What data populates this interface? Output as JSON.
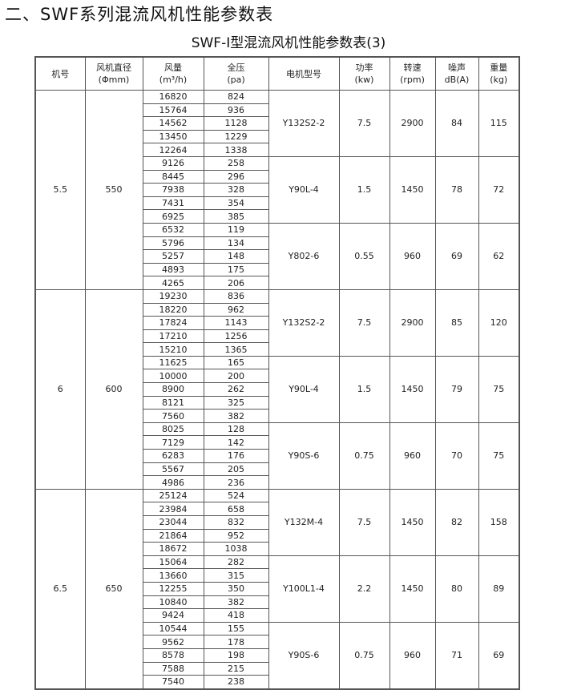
{
  "heading": "二、SWF系列混流风机性能参数表",
  "subtitle": "SWF-I型混流风机性能参数表(3)",
  "columns": [
    {
      "label": "机号",
      "unit": ""
    },
    {
      "label": "风机直径",
      "unit": "(Φmm)"
    },
    {
      "label": "风量",
      "unit": "(m³/h)"
    },
    {
      "label": "全压",
      "unit": "(pa)"
    },
    {
      "label": "电机型号",
      "unit": ""
    },
    {
      "label": "功率",
      "unit": "(kw)"
    },
    {
      "label": "转速",
      "unit": "(rpm)"
    },
    {
      "label": "噪声",
      "unit": "dB(A)"
    },
    {
      "label": "重量",
      "unit": "(kg)"
    }
  ],
  "groups": [
    {
      "no": "5.5",
      "diameter": "550",
      "motors": [
        {
          "model": "Y132S2-2",
          "power": "7.5",
          "speed": "2900",
          "noise": "84",
          "weight": "115",
          "rows": [
            [
              "16820",
              "824"
            ],
            [
              "15764",
              "936"
            ],
            [
              "14562",
              "1128"
            ],
            [
              "13450",
              "1229"
            ],
            [
              "12264",
              "1338"
            ]
          ]
        },
        {
          "model": "Y90L-4",
          "power": "1.5",
          "speed": "1450",
          "noise": "78",
          "weight": "72",
          "rows": [
            [
              "9126",
              "258"
            ],
            [
              "8445",
              "296"
            ],
            [
              "7938",
              "328"
            ],
            [
              "7431",
              "354"
            ],
            [
              "6925",
              "385"
            ]
          ]
        },
        {
          "model": "Y802-6",
          "power": "0.55",
          "speed": "960",
          "noise": "69",
          "weight": "62",
          "rows": [
            [
              "6532",
              "119"
            ],
            [
              "5796",
              "134"
            ],
            [
              "5257",
              "148"
            ],
            [
              "4893",
              "175"
            ],
            [
              "4265",
              "206"
            ]
          ]
        }
      ]
    },
    {
      "no": "6",
      "diameter": "600",
      "motors": [
        {
          "model": "Y132S2-2",
          "power": "7.5",
          "speed": "2900",
          "noise": "85",
          "weight": "120",
          "rows": [
            [
              "19230",
              "836"
            ],
            [
              "18220",
              "962"
            ],
            [
              "17824",
              "1143"
            ],
            [
              "17210",
              "1256"
            ],
            [
              "15210",
              "1365"
            ]
          ]
        },
        {
          "model": "Y90L-4",
          "power": "1.5",
          "speed": "1450",
          "noise": "79",
          "weight": "75",
          "rows": [
            [
              "11625",
              "165"
            ],
            [
              "10000",
              "200"
            ],
            [
              "8900",
              "262"
            ],
            [
              "8121",
              "325"
            ],
            [
              "7560",
              "382"
            ]
          ]
        },
        {
          "model": "Y90S-6",
          "power": "0.75",
          "speed": "960",
          "noise": "70",
          "weight": "75",
          "rows": [
            [
              "8025",
              "128"
            ],
            [
              "7129",
              "142"
            ],
            [
              "6283",
              "176"
            ],
            [
              "5567",
              "205"
            ],
            [
              "4986",
              "236"
            ]
          ]
        }
      ]
    },
    {
      "no": "6.5",
      "diameter": "650",
      "motors": [
        {
          "model": "Y132M-4",
          "power": "7.5",
          "speed": "1450",
          "noise": "82",
          "weight": "158",
          "rows": [
            [
              "25124",
              "524"
            ],
            [
              "23984",
              "658"
            ],
            [
              "23044",
              "832"
            ],
            [
              "21864",
              "952"
            ],
            [
              "18672",
              "1038"
            ]
          ]
        },
        {
          "model": "Y100L1-4",
          "power": "2.2",
          "speed": "1450",
          "noise": "80",
          "weight": "89",
          "rows": [
            [
              "15064",
              "282"
            ],
            [
              "13660",
              "315"
            ],
            [
              "12255",
              "350"
            ],
            [
              "10840",
              "382"
            ],
            [
              "9424",
              "418"
            ]
          ]
        },
        {
          "model": "Y90S-6",
          "power": "0.75",
          "speed": "960",
          "noise": "71",
          "weight": "69",
          "rows": [
            [
              "10544",
              "155"
            ],
            [
              "9562",
              "178"
            ],
            [
              "8578",
              "198"
            ],
            [
              "7588",
              "215"
            ],
            [
              "7540",
              "238"
            ]
          ]
        }
      ]
    }
  ]
}
